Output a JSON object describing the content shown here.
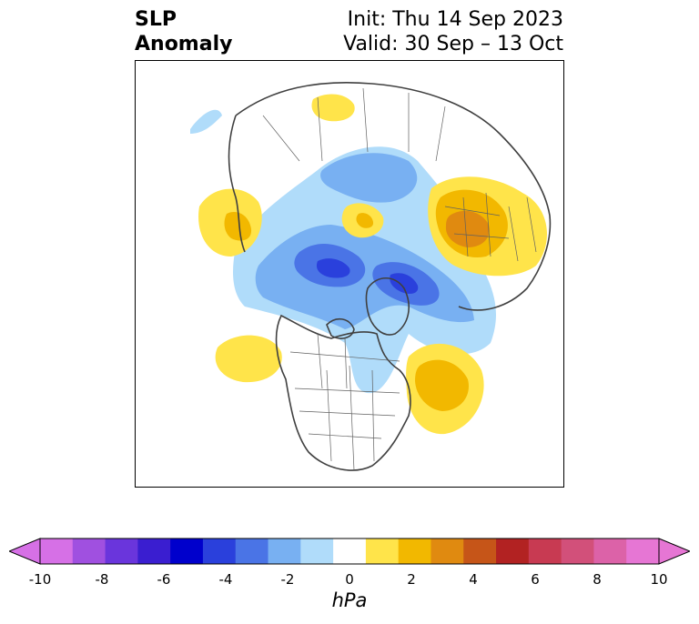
{
  "title": {
    "left_line1": "SLP",
    "left_line2": "Anomaly",
    "right_line1": "Init: Thu 14 Sep 2023",
    "right_line2": "Valid: 30 Sep – 13 Oct"
  },
  "colorbar": {
    "unit": "hPa",
    "ticks": [
      "-10",
      "-8",
      "-6",
      "-4",
      "-2",
      "0",
      "2",
      "4",
      "6",
      "8",
      "10"
    ],
    "min": -10,
    "max": 10,
    "extend": "both",
    "colors": [
      "#d670e6",
      "#a050e0",
      "#6a35dc",
      "#3a1ed0",
      "#0000cc",
      "#2a40dc",
      "#4a74e6",
      "#78b0f2",
      "#b0dcfa",
      "#ffffff",
      "#ffe44a",
      "#f2b800",
      "#e08a10",
      "#c65518",
      "#b22222",
      "#c83a52",
      "#d2507a",
      "#dc62a8",
      "#e676d4"
    ],
    "arrow_low_color": "#d670e6",
    "arrow_high_color": "#e676d4"
  },
  "map": {
    "projection": "north-polar stereographic",
    "region": "Northern Hemisphere"
  }
}
